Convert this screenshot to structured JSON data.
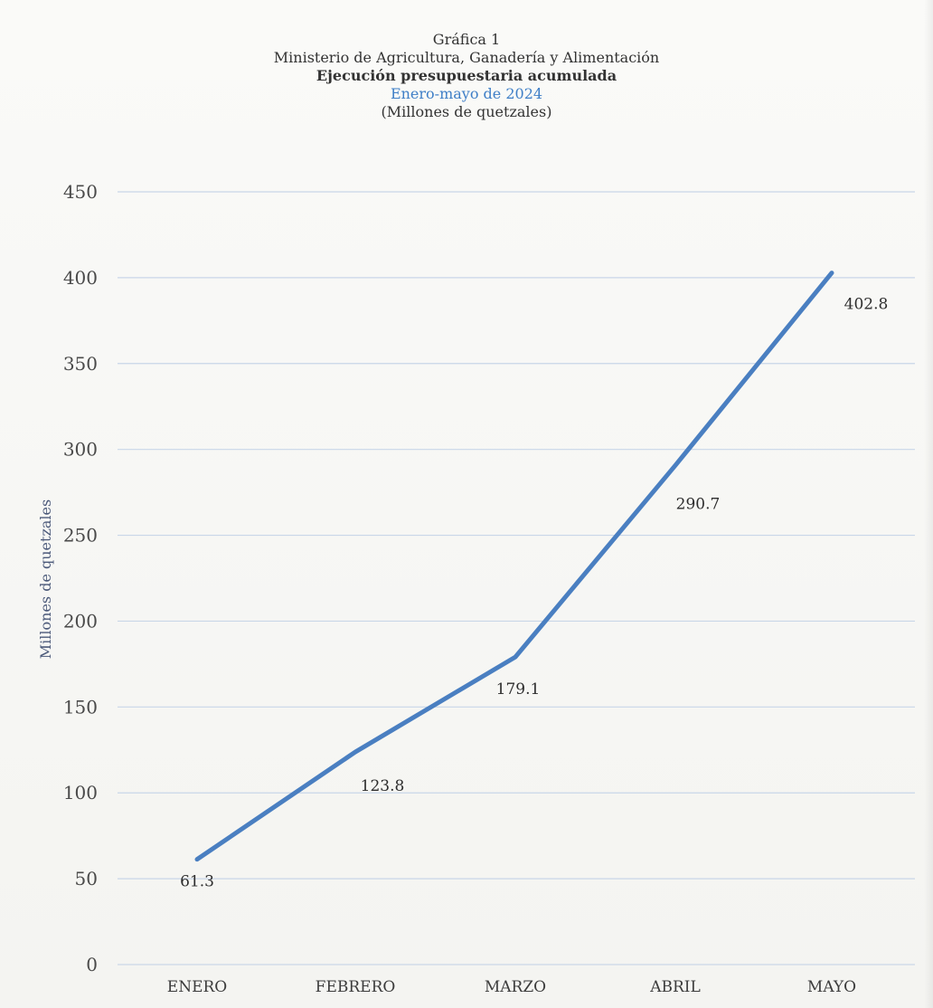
{
  "chart_data": {
    "type": "line",
    "title": "Gráfica 1",
    "subtitle_lines": [
      "Ministerio de Agricultura, Ganadería y Alimentación",
      "Ejecución presupuestaria acumulada",
      "Enero-mayo de 2024",
      "(Millones de quetzales)"
    ],
    "xlabel": "",
    "ylabel": "Millones de quetzales",
    "categories": [
      "ENERO",
      "FEBRERO",
      "MARZO",
      "ABRIL",
      "MAYO"
    ],
    "series": [
      {
        "values": [
          61.3,
          123.8,
          179.1,
          290.7,
          402.8
        ]
      }
    ],
    "data_labels": [
      "61.3",
      "123.8",
      "179.1",
      "290.7",
      "402.8"
    ],
    "ylim": [
      0,
      450
    ],
    "yticks": [
      0,
      50,
      100,
      150,
      200,
      250,
      300,
      350,
      400,
      450
    ],
    "grid": true,
    "legend": "none"
  },
  "colors": {
    "line": "#4a7fc1",
    "grid": "#c9d6e8",
    "subtitle_accent": "#3f7fc7",
    "text": "#333333"
  }
}
